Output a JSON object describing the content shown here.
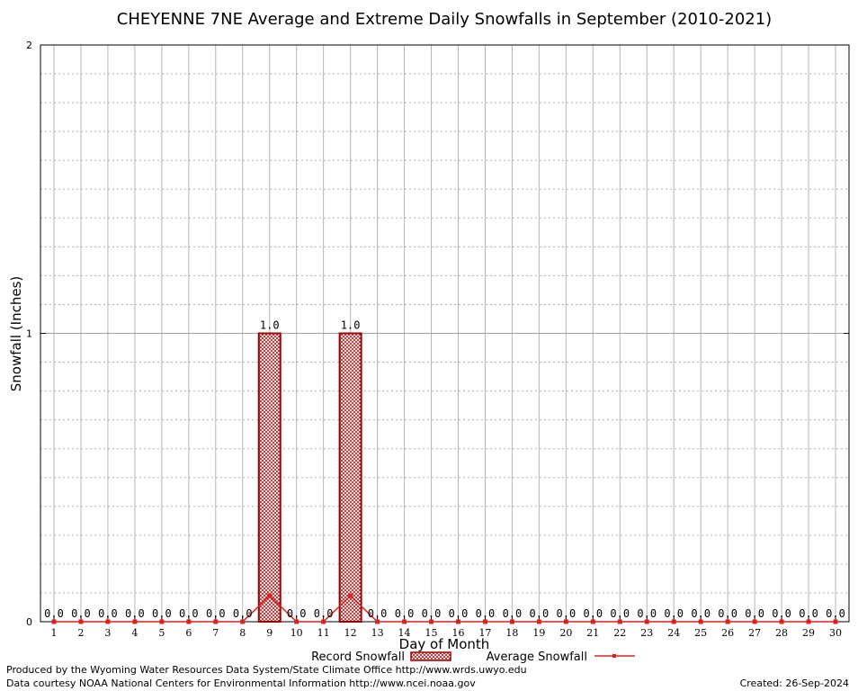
{
  "chart_data": {
    "type": "bar",
    "title": "CHEYENNE 7NE Average and Extreme Daily Snowfalls in September (2010-2021)",
    "xlabel": "Day of Month",
    "ylabel": "Snowfall (Inches)",
    "ylim": [
      0,
      2
    ],
    "yticks": [
      "0",
      "1",
      "2"
    ],
    "categories": [
      "1",
      "2",
      "3",
      "4",
      "5",
      "6",
      "7",
      "8",
      "9",
      "10",
      "11",
      "12",
      "13",
      "14",
      "15",
      "16",
      "17",
      "18",
      "19",
      "20",
      "21",
      "22",
      "23",
      "24",
      "25",
      "26",
      "27",
      "28",
      "29",
      "30"
    ],
    "series": [
      {
        "name": "Record Snowfall",
        "kind": "bar",
        "color": "#a00000",
        "values": [
          0,
          0,
          0,
          0,
          0,
          0,
          0,
          0,
          1.0,
          0,
          0,
          1.0,
          0,
          0,
          0,
          0,
          0,
          0,
          0,
          0,
          0,
          0,
          0,
          0,
          0,
          0,
          0,
          0,
          0,
          0
        ],
        "labels": [
          "0.0",
          "0.0",
          "0.0",
          "0.0",
          "0.0",
          "0.0",
          "0.0",
          "0.0",
          "1.0",
          "0.0",
          "0.0",
          "1.0",
          "0.0",
          "0.0",
          "0.0",
          "0.0",
          "0.0",
          "0.0",
          "0.0",
          "0.0",
          "0.0",
          "0.0",
          "0.0",
          "0.0",
          "0.0",
          "0.0",
          "0.0",
          "0.0",
          "0.0",
          "0.0"
        ]
      },
      {
        "name": "Average Snowfall",
        "kind": "line",
        "color": "#e02020",
        "values": [
          0,
          0,
          0,
          0,
          0,
          0,
          0,
          0,
          0.09,
          0,
          0,
          0.09,
          0,
          0,
          0,
          0,
          0,
          0,
          0,
          0,
          0,
          0,
          0,
          0,
          0,
          0,
          0,
          0,
          0,
          0
        ]
      }
    ],
    "grid": true,
    "legend_position": "bottom"
  },
  "footer": {
    "produced_by": "Produced by the Wyoming Water Resources Data System/State Climate Office http://www.wrds.uwyo.edu",
    "courtesy": "Data courtesy NOAA National Centers for Environmental Information http://www.ncei.noaa.gov",
    "created": "Created: 26-Sep-2024"
  }
}
